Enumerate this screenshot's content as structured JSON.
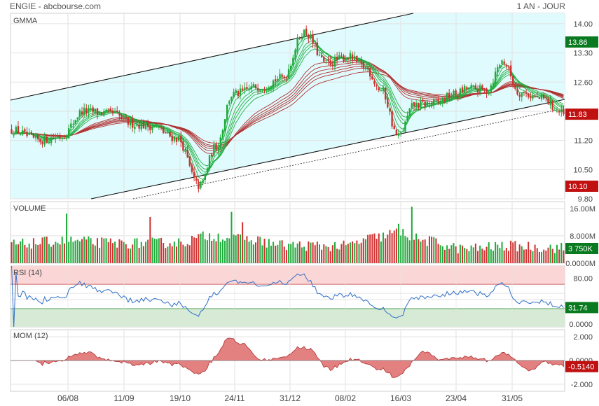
{
  "header": {
    "title": "ENGIE - abcbourse.com",
    "period": "1 AN - JOUR"
  },
  "colors": {
    "up": "#1faa3a",
    "down": "#d03030",
    "channel_fill": "#e0fbfd",
    "rsi_line": "#2f6fc9",
    "mom_fill": "#e38080",
    "ema_short": "#20b040",
    "ema_long": "#b03030",
    "badge_green": "#0a7a20",
    "badge_red": "#c01010"
  },
  "chart_data": [
    {
      "type": "candlestick",
      "panel": "GMMA",
      "label": "GMMA",
      "x_ticks": [
        "06/08",
        "11/09",
        "19/10",
        "24/11",
        "31/12",
        "08/02",
        "16/03",
        "23/04",
        "31/05"
      ],
      "y_ticks": [
        "14.00",
        "13.30",
        "12.60",
        "11.90",
        "11.20",
        "10.50",
        "9.80"
      ],
      "ylim": [
        9.8,
        14.25
      ],
      "last_value": "11.83",
      "high_badge": "13.86",
      "low_badge": "10.10",
      "price_path": [
        {
          "t": 0,
          "v": 11.45
        },
        {
          "t": 0.05,
          "v": 11.2
        },
        {
          "t": 0.09,
          "v": 11.3
        },
        {
          "t": 0.13,
          "v": 11.9
        },
        {
          "t": 0.18,
          "v": 11.85
        },
        {
          "t": 0.22,
          "v": 11.6
        },
        {
          "t": 0.25,
          "v": 11.55
        },
        {
          "t": 0.3,
          "v": 11.25
        },
        {
          "t": 0.34,
          "v": 10.1
        },
        {
          "t": 0.37,
          "v": 11.05
        },
        {
          "t": 0.4,
          "v": 12.3
        },
        {
          "t": 0.45,
          "v": 12.5
        },
        {
          "t": 0.49,
          "v": 12.7
        },
        {
          "t": 0.53,
          "v": 13.8
        },
        {
          "t": 0.57,
          "v": 13.05
        },
        {
          "t": 0.61,
          "v": 13.2
        },
        {
          "t": 0.64,
          "v": 12.95
        },
        {
          "t": 0.67,
          "v": 12.4
        },
        {
          "t": 0.7,
          "v": 11.3
        },
        {
          "t": 0.73,
          "v": 12.05
        },
        {
          "t": 0.77,
          "v": 12.1
        },
        {
          "t": 0.8,
          "v": 12.3
        },
        {
          "t": 0.83,
          "v": 12.45
        },
        {
          "t": 0.86,
          "v": 12.4
        },
        {
          "t": 0.89,
          "v": 13.1
        },
        {
          "t": 0.92,
          "v": 12.35
        },
        {
          "t": 0.96,
          "v": 12.2
        },
        {
          "t": 1,
          "v": 11.83
        }
      ],
      "volume_profile": [
        {
          "t": 0,
          "v": 5.5
        },
        {
          "t": 0.1,
          "v": 6.5
        },
        {
          "t": 0.2,
          "v": 5.8
        },
        {
          "t": 0.3,
          "v": 6.0
        },
        {
          "t": 0.36,
          "v": 8.0
        },
        {
          "t": 0.43,
          "v": 6.8
        },
        {
          "t": 0.5,
          "v": 5.2
        },
        {
          "t": 0.6,
          "v": 5.0
        },
        {
          "t": 0.66,
          "v": 7.5
        },
        {
          "t": 0.7,
          "v": 9.0
        },
        {
          "t": 0.75,
          "v": 6.5
        },
        {
          "t": 0.82,
          "v": 4.2
        },
        {
          "t": 0.9,
          "v": 5.0
        },
        {
          "t": 1,
          "v": 4.5
        }
      ],
      "volume_spikes": [
        {
          "t": 0.1,
          "v": 14.5
        },
        {
          "t": 0.25,
          "v": 13.5
        },
        {
          "t": 0.4,
          "v": 15.0
        },
        {
          "t": 0.725,
          "v": 16.5
        },
        {
          "t": 0.42,
          "v": 12.0
        },
        {
          "t": 0.7,
          "v": 11.5
        }
      ]
    },
    {
      "type": "bar",
      "panel": "VOLUME",
      "label": "VOLUME",
      "y_ticks": [
        "16.00M",
        "8.000M",
        "0.0000M"
      ],
      "ylim": [
        0,
        18
      ],
      "last_value": "3 750K"
    },
    {
      "type": "line",
      "panel": "RSI",
      "label": "RSI (14)",
      "y_ticks": [
        "80.00",
        "0.0000"
      ],
      "levels": [
        70,
        30
      ],
      "last_value": "31.74"
    },
    {
      "type": "area",
      "panel": "MOM",
      "label": "MOM (12)",
      "y_ticks": [
        "2.000",
        "0.0000",
        "-2.000"
      ],
      "ylim": [
        -2.6,
        2.6
      ],
      "last_value": "-0.5140"
    }
  ]
}
